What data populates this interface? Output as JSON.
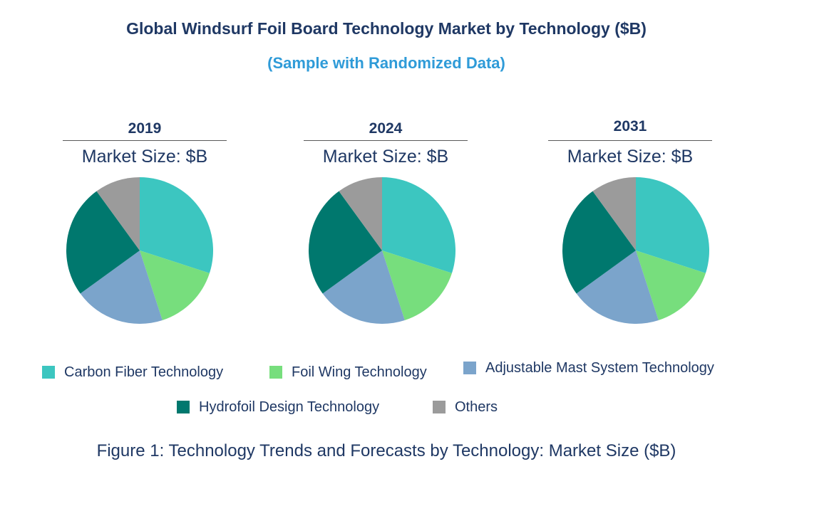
{
  "page": {
    "title": "Global Windsurf Foil Board Technology Market by Technology ($B)",
    "subtitle": "(Sample with Randomized Data)",
    "caption": "Figure 1: Technology Trends and Forecasts by Technology: Market Size ($B)"
  },
  "colors": {
    "title_navy": "#1F3864",
    "subtitle_blue": "#2F9BD8",
    "divider_gray": "#595959",
    "background": "#FFFFFF"
  },
  "chart_data": {
    "type": "pie",
    "title": "Global Windsurf Foil Board Technology Market by Technology ($B)",
    "subtitle": "(Sample with Randomized Data)",
    "legend_position": "bottom",
    "values_unlabeled_estimated_from_angles": true,
    "categories": [
      "Carbon Fiber Technology",
      "Foil Wing Technology",
      "Adjustable Mast System Technology",
      "Hydrofoil Design Technology",
      "Others"
    ],
    "slice_colors": [
      "#3CC6C0",
      "#77DE7D",
      "#7BA4CB",
      "#00786E",
      "#9B9B9B"
    ],
    "panels": [
      {
        "year": "2019",
        "header_label": "Market Size: $B",
        "values_pct": [
          30,
          15,
          20,
          25,
          10
        ]
      },
      {
        "year": "2024",
        "header_label": "Market Size: $B",
        "values_pct": [
          30,
          15,
          20,
          25,
          10
        ]
      },
      {
        "year": "2031",
        "header_label": "Market Size: $B",
        "values_pct": [
          30,
          15,
          20,
          25,
          10
        ]
      }
    ],
    "legend_rows": [
      [
        "Carbon Fiber Technology",
        "Foil Wing Technology",
        "Adjustable Mast System Technology"
      ],
      [
        "Hydrofoil Design Technology",
        "Others"
      ]
    ]
  }
}
